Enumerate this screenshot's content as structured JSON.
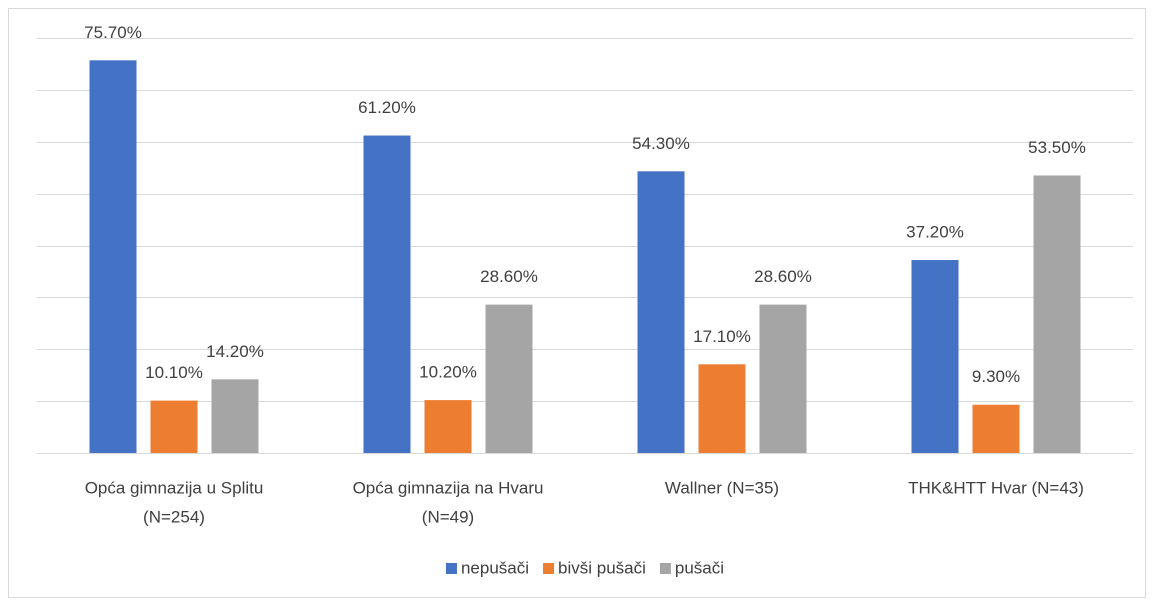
{
  "chart_data": {
    "type": "bar",
    "categories": [
      [
        "Opća gimnazija u Splitu",
        "(N=254)"
      ],
      [
        "Opća gimnazija na Hvaru",
        "(N=49)"
      ],
      [
        "Wallner (N=35)"
      ],
      [
        "THK&HTT Hvar (N=43)"
      ]
    ],
    "series": [
      {
        "name": "nepušači",
        "color": "#4472c4",
        "values": [
          75.7,
          61.2,
          54.3,
          37.2
        ],
        "value_labels": [
          "75.70%",
          "61.20%",
          "54.30%",
          "37.20%"
        ]
      },
      {
        "name": "bivši pušači",
        "color": "#ed7d31",
        "values": [
          10.1,
          10.2,
          17.1,
          9.3
        ],
        "value_labels": [
          "10.10%",
          "10.20%",
          "17.10%",
          "9.30%"
        ]
      },
      {
        "name": "pušači",
        "color": "#a5a5a5",
        "values": [
          14.2,
          28.6,
          28.6,
          53.5
        ],
        "value_labels": [
          "14.20%",
          "28.60%",
          "28.60%",
          "53.50%"
        ]
      }
    ],
    "ylim": [
      0,
      80
    ],
    "yticks": [
      0,
      10,
      20,
      30,
      40,
      50,
      60,
      70,
      80
    ],
    "grid": true,
    "legend": "bottom"
  }
}
